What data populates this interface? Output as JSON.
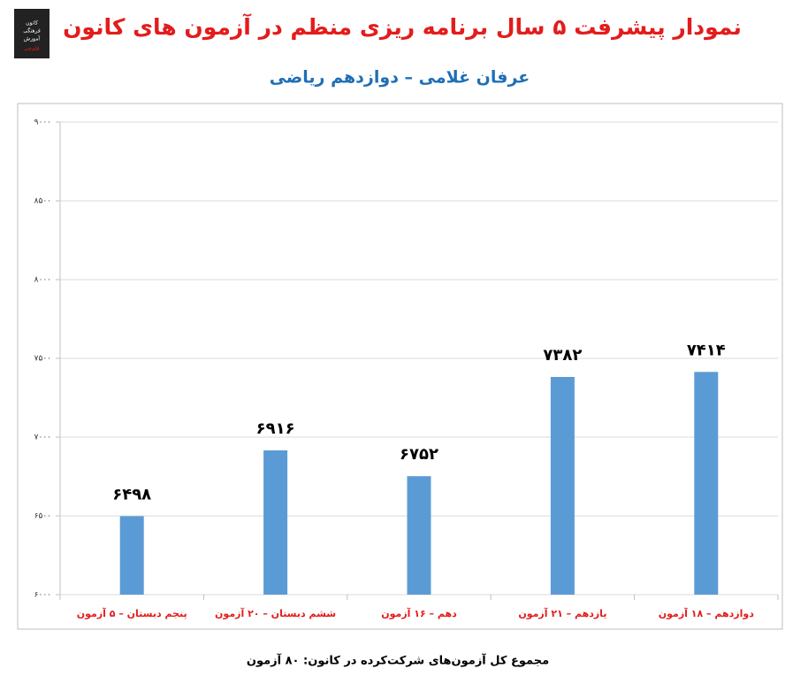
{
  "chart_data": {
    "type": "bar",
    "title": "نمودار پیشرفت ۵ سال برنامه ریزی منظم در آزمون های کانون",
    "subtitle": "عرفان غلامی – دوازدهم ریاضی",
    "footer": "مجموع کل آزمون‌های شرکت‌کرده در کانون: ۸۰ آزمون",
    "logo": [
      "کانون",
      "فرهنگی",
      "آموزش",
      "قلم‌چی"
    ],
    "categories": [
      "پنجم دبستان – ۵ آزمون",
      "ششم دبستان – ۲۰ آزمون",
      "دهم – ۱۶ آزمون",
      "یازدهم – ۲۱ آزمون",
      "دوازدهم – ۱۸ آزمون"
    ],
    "values": [
      6498,
      6916,
      6752,
      7382,
      7414
    ],
    "value_labels": [
      "۶۴۹۸",
      "۶۹۱۶",
      "۶۷۵۲",
      "۷۳۸۲",
      "۷۴۱۴"
    ],
    "color": "#5b9bd5",
    "ylim": [
      6000,
      9000
    ],
    "yticks": [
      {
        "value": 6000,
        "label": "۶۰۰۰"
      },
      {
        "value": 6500,
        "label": "۶۵۰۰"
      },
      {
        "value": 7000,
        "label": "۷۰۰۰"
      },
      {
        "value": 7500,
        "label": "۷۵۰۰"
      },
      {
        "value": 8000,
        "label": "۸۰۰۰"
      },
      {
        "value": 8500,
        "label": "۸۵۰۰"
      },
      {
        "value": 9000,
        "label": "۹۰۰۰"
      }
    ],
    "grid": true
  }
}
